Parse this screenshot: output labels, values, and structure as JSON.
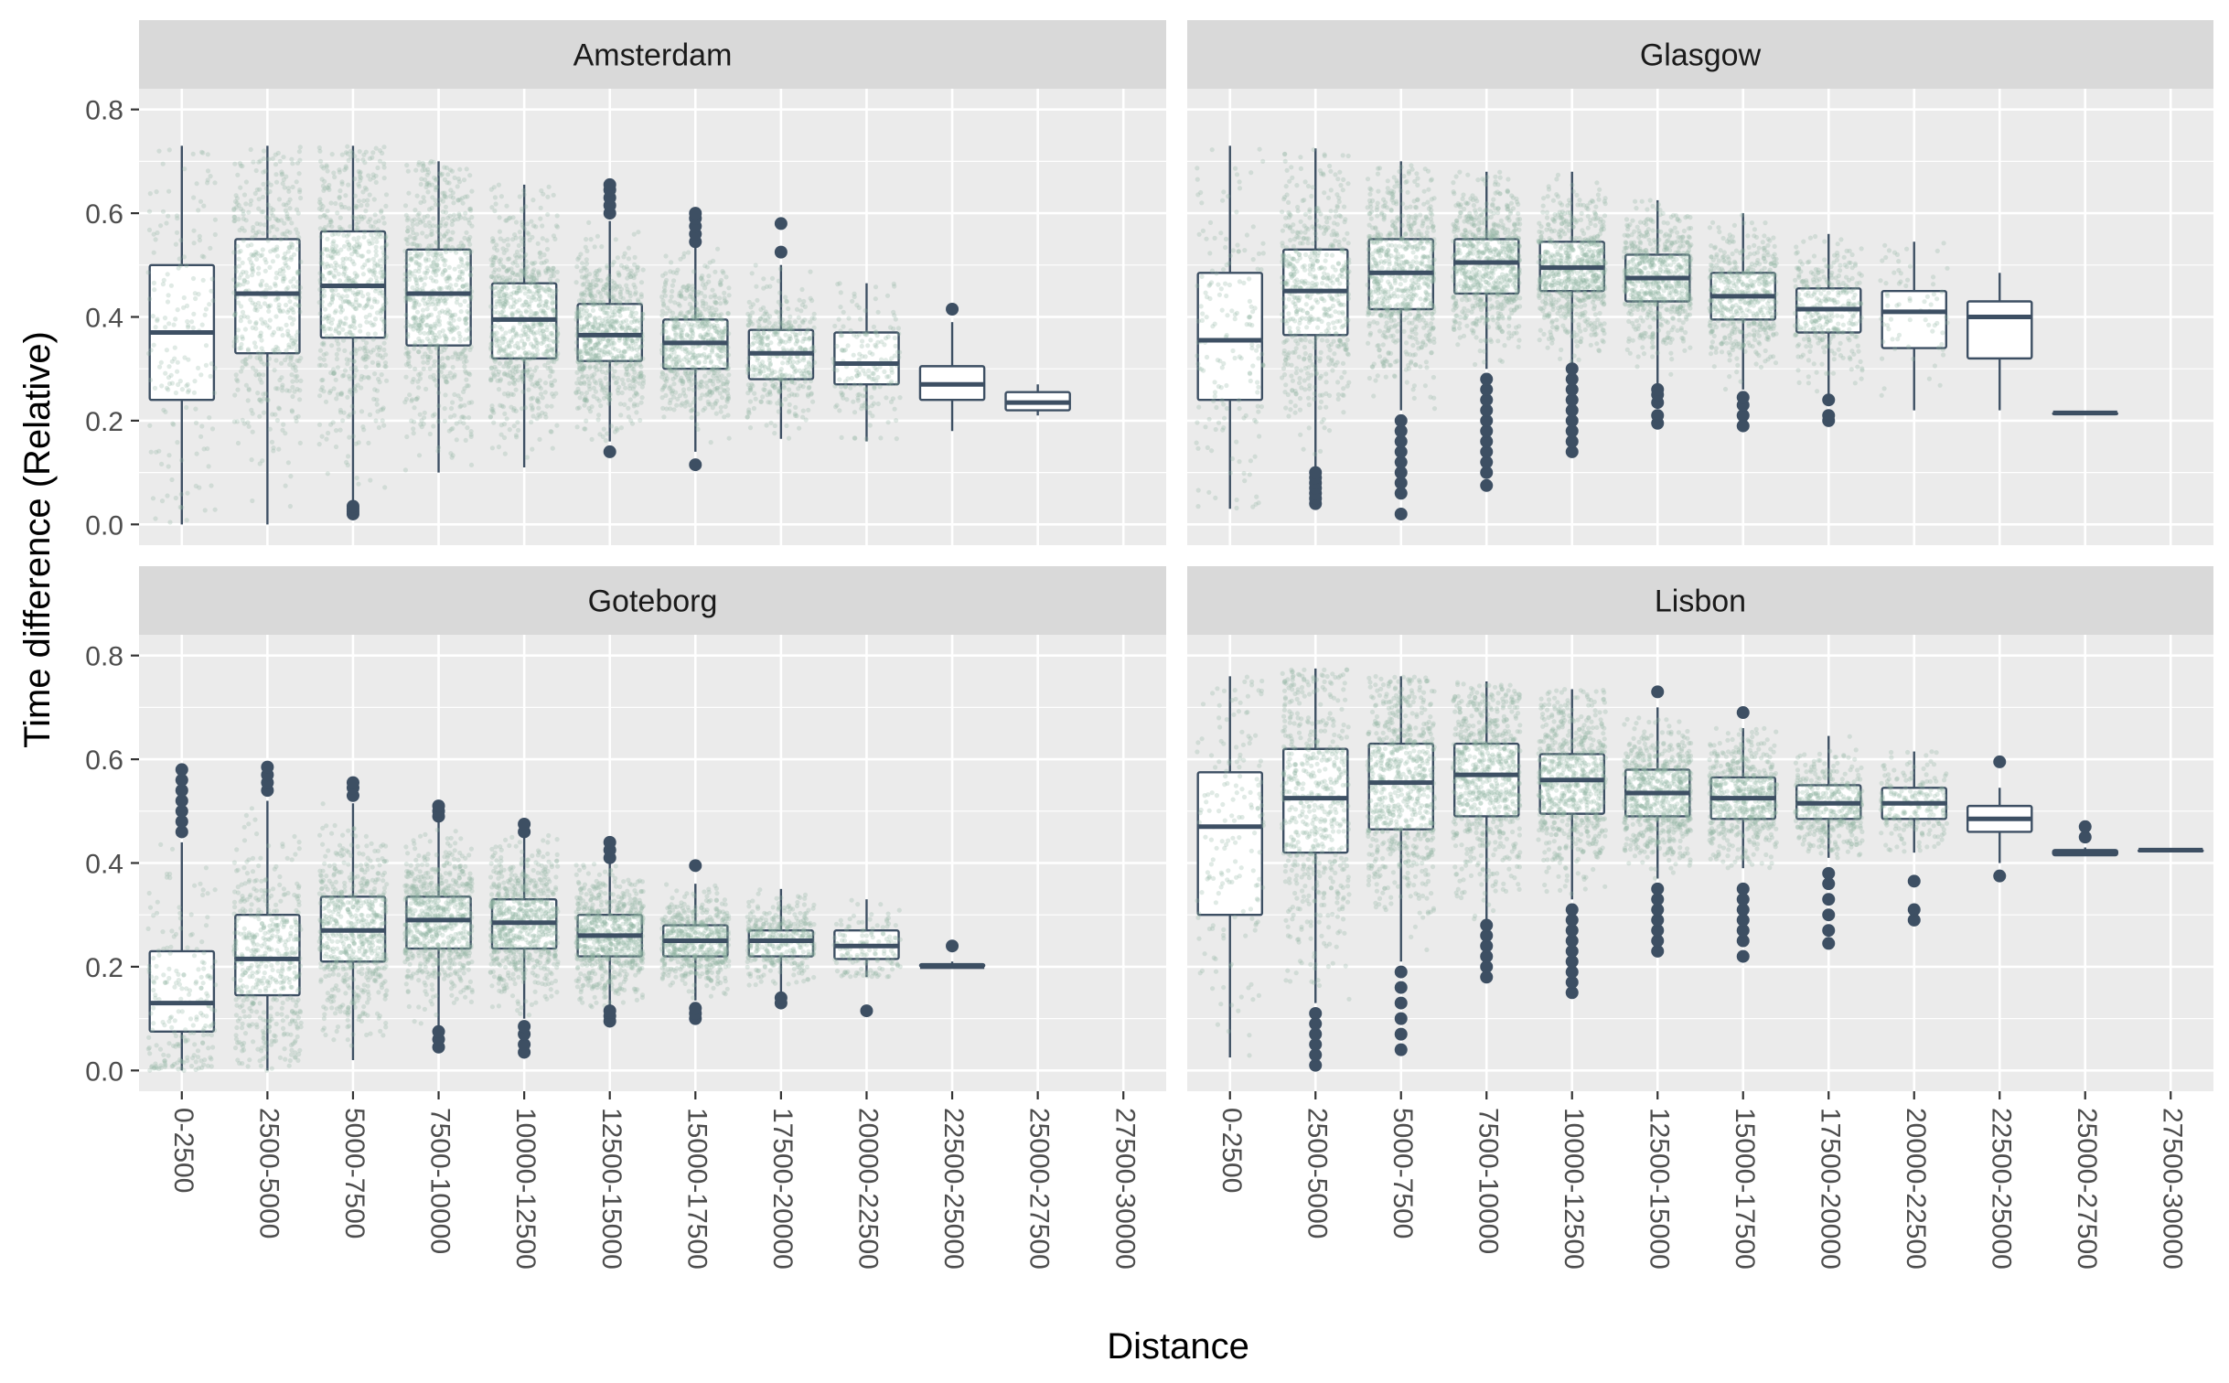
{
  "chart_data": {
    "type": "boxplot",
    "xlabel": "Distance",
    "ylabel": "Time difference (Relative)",
    "ylim": [
      -0.04,
      0.84
    ],
    "yticks": [
      0.0,
      0.2,
      0.4,
      0.6,
      0.8
    ],
    "ytick_labels": [
      "0.0",
      "0.2",
      "0.4",
      "0.6",
      "0.8"
    ],
    "categories": [
      "0-2500",
      "2500-5000",
      "5000-7500",
      "7500-10000",
      "10000-12500",
      "12500-15000",
      "15000-17500",
      "17500-20000",
      "20000-22500",
      "22500-25000",
      "25000-27500",
      "27500-30000"
    ],
    "colors": {
      "panel_bg": "#ebebeb",
      "grid": "#ffffff",
      "strip_bg": "#d9d9d9",
      "box": "#3d4f63",
      "jitter": "#8fb5a1"
    },
    "facets": [
      {
        "name": "Amsterdam",
        "boxes": [
          {
            "cat": "0-2500",
            "min": 0.0,
            "q1": 0.24,
            "median": 0.37,
            "q3": 0.5,
            "max": 0.73,
            "outliers": [],
            "density": 0.25
          },
          {
            "cat": "2500-5000",
            "min": 0.0,
            "q1": 0.33,
            "median": 0.445,
            "q3": 0.55,
            "max": 0.73,
            "outliers": [],
            "density": 0.7
          },
          {
            "cat": "5000-7500",
            "min": 0.04,
            "q1": 0.36,
            "median": 0.46,
            "q3": 0.565,
            "max": 0.73,
            "outliers": [
              0.02,
              0.025,
              0.03,
              0.035
            ],
            "density": 0.9
          },
          {
            "cat": "7500-10000",
            "min": 0.1,
            "q1": 0.345,
            "median": 0.445,
            "q3": 0.53,
            "max": 0.7,
            "outliers": [],
            "density": 1.0
          },
          {
            "cat": "10000-12500",
            "min": 0.11,
            "q1": 0.32,
            "median": 0.395,
            "q3": 0.465,
            "max": 0.655,
            "outliers": [],
            "density": 1.0
          },
          {
            "cat": "12500-15000",
            "min": 0.16,
            "q1": 0.315,
            "median": 0.365,
            "q3": 0.425,
            "max": 0.585,
            "outliers": [
              0.14,
              0.6,
              0.615,
              0.63,
              0.645,
              0.655
            ],
            "density": 1.0
          },
          {
            "cat": "15000-17500",
            "min": 0.14,
            "q1": 0.3,
            "median": 0.35,
            "q3": 0.395,
            "max": 0.535,
            "outliers": [
              0.115,
              0.545,
              0.56,
              0.575,
              0.59,
              0.6
            ],
            "density": 0.85
          },
          {
            "cat": "17500-20000",
            "min": 0.165,
            "q1": 0.28,
            "median": 0.33,
            "q3": 0.375,
            "max": 0.5,
            "outliers": [
              0.525,
              0.58
            ],
            "density": 0.55
          },
          {
            "cat": "20000-22500",
            "min": 0.16,
            "q1": 0.27,
            "median": 0.31,
            "q3": 0.37,
            "max": 0.465,
            "outliers": [],
            "density": 0.25
          },
          {
            "cat": "22500-25000",
            "min": 0.18,
            "q1": 0.24,
            "median": 0.27,
            "q3": 0.305,
            "max": 0.39,
            "outliers": [
              0.415
            ],
            "density": 0.0
          },
          {
            "cat": "25000-27500",
            "min": 0.21,
            "q1": 0.22,
            "median": 0.235,
            "q3": 0.255,
            "max": 0.27,
            "outliers": [],
            "density": 0.0
          }
        ]
      },
      {
        "name": "Glasgow",
        "boxes": [
          {
            "cat": "0-2500",
            "min": 0.03,
            "q1": 0.24,
            "median": 0.355,
            "q3": 0.485,
            "max": 0.73,
            "outliers": [],
            "density": 0.25
          },
          {
            "cat": "2500-5000",
            "min": 0.11,
            "q1": 0.365,
            "median": 0.45,
            "q3": 0.53,
            "max": 0.725,
            "outliers": [
              0.04,
              0.05,
              0.06,
              0.07,
              0.08,
              0.09,
              0.1
            ],
            "density": 0.8
          },
          {
            "cat": "5000-7500",
            "min": 0.22,
            "q1": 0.415,
            "median": 0.485,
            "q3": 0.55,
            "max": 0.7,
            "outliers": [
              0.02,
              0.06,
              0.08,
              0.1,
              0.12,
              0.14,
              0.16,
              0.18,
              0.2
            ],
            "density": 1.0
          },
          {
            "cat": "7500-10000",
            "min": 0.3,
            "q1": 0.445,
            "median": 0.505,
            "q3": 0.55,
            "max": 0.68,
            "outliers": [
              0.075,
              0.1,
              0.12,
              0.14,
              0.16,
              0.18,
              0.2,
              0.22,
              0.24,
              0.26,
              0.28
            ],
            "density": 1.0
          },
          {
            "cat": "10000-12500",
            "min": 0.31,
            "q1": 0.45,
            "median": 0.495,
            "q3": 0.545,
            "max": 0.68,
            "outliers": [
              0.14,
              0.16,
              0.18,
              0.2,
              0.22,
              0.24,
              0.26,
              0.28,
              0.3
            ],
            "density": 1.0
          },
          {
            "cat": "12500-15000",
            "min": 0.27,
            "q1": 0.43,
            "median": 0.475,
            "q3": 0.52,
            "max": 0.625,
            "outliers": [
              0.195,
              0.21,
              0.235,
              0.25,
              0.26
            ],
            "density": 0.9
          },
          {
            "cat": "15000-17500",
            "min": 0.26,
            "q1": 0.395,
            "median": 0.44,
            "q3": 0.485,
            "max": 0.6,
            "outliers": [
              0.19,
              0.21,
              0.23,
              0.245
            ],
            "density": 0.7
          },
          {
            "cat": "17500-20000",
            "min": 0.25,
            "q1": 0.37,
            "median": 0.415,
            "q3": 0.455,
            "max": 0.56,
            "outliers": [
              0.2,
              0.21,
              0.24
            ],
            "density": 0.45
          },
          {
            "cat": "20000-22500",
            "min": 0.22,
            "q1": 0.34,
            "median": 0.41,
            "q3": 0.45,
            "max": 0.545,
            "outliers": [],
            "density": 0.1
          },
          {
            "cat": "22500-25000",
            "min": 0.22,
            "q1": 0.32,
            "median": 0.4,
            "q3": 0.43,
            "max": 0.485,
            "outliers": [],
            "density": 0.0
          },
          {
            "cat": "25000-27500",
            "min": 0.215,
            "q1": 0.215,
            "median": 0.215,
            "q3": 0.215,
            "max": 0.215,
            "outliers": [],
            "density": 0.0
          }
        ]
      },
      {
        "name": "Goteborg",
        "boxes": [
          {
            "cat": "0-2500",
            "min": 0.0,
            "q1": 0.075,
            "median": 0.13,
            "q3": 0.23,
            "max": 0.44,
            "outliers": [
              0.46,
              0.48,
              0.5,
              0.52,
              0.54,
              0.56,
              0.58
            ],
            "density": 0.3
          },
          {
            "cat": "2500-5000",
            "min": 0.0,
            "q1": 0.145,
            "median": 0.215,
            "q3": 0.3,
            "max": 0.52,
            "outliers": [
              0.54,
              0.555,
              0.57,
              0.585
            ],
            "density": 0.7
          },
          {
            "cat": "5000-7500",
            "min": 0.02,
            "q1": 0.21,
            "median": 0.27,
            "q3": 0.335,
            "max": 0.515,
            "outliers": [
              0.53,
              0.545,
              0.555
            ],
            "density": 0.9
          },
          {
            "cat": "7500-10000",
            "min": 0.08,
            "q1": 0.235,
            "median": 0.29,
            "q3": 0.335,
            "max": 0.48,
            "outliers": [
              0.045,
              0.06,
              0.075,
              0.49,
              0.5,
              0.51
            ],
            "density": 1.0
          },
          {
            "cat": "10000-12500",
            "min": 0.1,
            "q1": 0.235,
            "median": 0.285,
            "q3": 0.33,
            "max": 0.455,
            "outliers": [
              0.035,
              0.05,
              0.07,
              0.085,
              0.46,
              0.475
            ],
            "density": 1.0
          },
          {
            "cat": "12500-15000",
            "min": 0.12,
            "q1": 0.22,
            "median": 0.26,
            "q3": 0.3,
            "max": 0.4,
            "outliers": [
              0.095,
              0.105,
              0.115,
              0.41,
              0.425,
              0.44
            ],
            "density": 1.0
          },
          {
            "cat": "15000-17500",
            "min": 0.135,
            "q1": 0.22,
            "median": 0.25,
            "q3": 0.28,
            "max": 0.36,
            "outliers": [
              0.1,
              0.11,
              0.12,
              0.395
            ],
            "density": 0.8
          },
          {
            "cat": "17500-20000",
            "min": 0.15,
            "q1": 0.22,
            "median": 0.25,
            "q3": 0.27,
            "max": 0.35,
            "outliers": [
              0.13,
              0.14
            ],
            "density": 0.5
          },
          {
            "cat": "20000-22500",
            "min": 0.18,
            "q1": 0.215,
            "median": 0.24,
            "q3": 0.27,
            "max": 0.33,
            "outliers": [
              0.115
            ],
            "density": 0.2
          },
          {
            "cat": "22500-25000",
            "min": 0.2,
            "q1": 0.2,
            "median": 0.2,
            "q3": 0.205,
            "max": 0.21,
            "outliers": [
              0.24
            ],
            "density": 0.0
          }
        ]
      },
      {
        "name": "Lisbon",
        "boxes": [
          {
            "cat": "0-2500",
            "min": 0.025,
            "q1": 0.3,
            "median": 0.47,
            "q3": 0.575,
            "max": 0.76,
            "outliers": [],
            "density": 0.25
          },
          {
            "cat": "2500-5000",
            "min": 0.13,
            "q1": 0.42,
            "median": 0.525,
            "q3": 0.62,
            "max": 0.775,
            "outliers": [
              0.01,
              0.03,
              0.05,
              0.07,
              0.09,
              0.11
            ],
            "density": 0.8
          },
          {
            "cat": "5000-7500",
            "min": 0.21,
            "q1": 0.465,
            "median": 0.555,
            "q3": 0.63,
            "max": 0.76,
            "outliers": [
              0.04,
              0.07,
              0.1,
              0.13,
              0.16,
              0.19
            ],
            "density": 1.0
          },
          {
            "cat": "7500-10000",
            "min": 0.29,
            "q1": 0.49,
            "median": 0.57,
            "q3": 0.63,
            "max": 0.75,
            "outliers": [
              0.18,
              0.2,
              0.22,
              0.24,
              0.26,
              0.28
            ],
            "density": 1.0
          },
          {
            "cat": "10000-12500",
            "min": 0.33,
            "q1": 0.495,
            "median": 0.56,
            "q3": 0.61,
            "max": 0.735,
            "outliers": [
              0.15,
              0.17,
              0.19,
              0.21,
              0.23,
              0.25,
              0.27,
              0.29,
              0.31
            ],
            "density": 1.0
          },
          {
            "cat": "12500-15000",
            "min": 0.37,
            "q1": 0.49,
            "median": 0.535,
            "q3": 0.58,
            "max": 0.7,
            "outliers": [
              0.23,
              0.25,
              0.27,
              0.29,
              0.31,
              0.33,
              0.35,
              0.73
            ],
            "density": 0.95
          },
          {
            "cat": "15000-17500",
            "min": 0.39,
            "q1": 0.485,
            "median": 0.525,
            "q3": 0.565,
            "max": 0.66,
            "outliers": [
              0.22,
              0.25,
              0.27,
              0.29,
              0.31,
              0.33,
              0.35,
              0.69
            ],
            "density": 0.8
          },
          {
            "cat": "17500-20000",
            "min": 0.41,
            "q1": 0.485,
            "median": 0.515,
            "q3": 0.55,
            "max": 0.645,
            "outliers": [
              0.245,
              0.27,
              0.3,
              0.33,
              0.36,
              0.38
            ],
            "density": 0.55
          },
          {
            "cat": "20000-22500",
            "min": 0.42,
            "q1": 0.485,
            "median": 0.515,
            "q3": 0.545,
            "max": 0.615,
            "outliers": [
              0.29,
              0.31,
              0.365
            ],
            "density": 0.3
          },
          {
            "cat": "22500-25000",
            "min": 0.4,
            "q1": 0.46,
            "median": 0.485,
            "q3": 0.51,
            "max": 0.545,
            "outliers": [
              0.375,
              0.595
            ],
            "density": 0.0
          },
          {
            "cat": "25000-27500",
            "min": 0.415,
            "q1": 0.415,
            "median": 0.42,
            "q3": 0.425,
            "max": 0.43,
            "outliers": [
              0.45,
              0.47
            ],
            "density": 0.0
          },
          {
            "cat": "27500-30000",
            "min": 0.425,
            "q1": 0.425,
            "median": 0.425,
            "q3": 0.425,
            "max": 0.425,
            "outliers": [],
            "density": 0.0
          }
        ]
      }
    ]
  }
}
